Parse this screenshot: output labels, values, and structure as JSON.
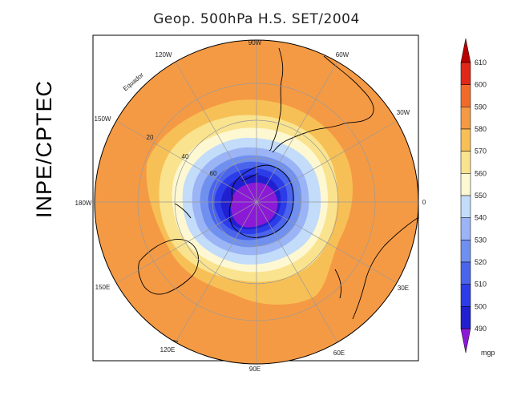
{
  "title": "Geop. 500hPa H.S. SET/2004",
  "credit": "INPE/CPTEC",
  "map": {
    "projection": "south-polar-stereographic",
    "longitude_labels": [
      {
        "text": "90W",
        "lon": -90
      },
      {
        "text": "60W",
        "lon": -60
      },
      {
        "text": "30W",
        "lon": -30
      },
      {
        "text": "0",
        "lon": 0
      },
      {
        "text": "30E",
        "lon": 30
      },
      {
        "text": "60E",
        "lon": 60
      },
      {
        "text": "90E",
        "lon": 90
      },
      {
        "text": "120E",
        "lon": 120
      },
      {
        "text": "150E",
        "lon": 150
      },
      {
        "text": "180W",
        "lon": 180
      },
      {
        "text": "150W",
        "lon": -150
      },
      {
        "text": "120W",
        "lon": -120
      }
    ],
    "latitude_labels": [
      {
        "text": "20",
        "lat": -20
      },
      {
        "text": "40",
        "lat": -40
      },
      {
        "text": "60",
        "lat": -60
      }
    ],
    "equator_label": "Equador"
  },
  "colorbar": {
    "unit": "mgp",
    "levels": [
      "490",
      "500",
      "510",
      "520",
      "530",
      "540",
      "550",
      "560",
      "570",
      "580",
      "590",
      "600",
      "610"
    ],
    "colors": [
      "#8b1ad6",
      "#2020d0",
      "#2c3ce8",
      "#4a64ec",
      "#7090f0",
      "#9ab4f6",
      "#c2dcfa",
      "#fdf8d2",
      "#fae38e",
      "#f7c056",
      "#f59a44",
      "#f26a2a",
      "#e02818",
      "#b80000"
    ]
  },
  "chart_data": {
    "type": "heatmap",
    "title": "Geop. 500hPa H.S. SET/2004",
    "variable": "500 hPa geopotential height",
    "unit": "mgp",
    "contour_levels": [
      490,
      500,
      510,
      520,
      530,
      540,
      550,
      560,
      570,
      580,
      590,
      600,
      610
    ],
    "approx_field": [
      {
        "region": "South Pole",
        "value_range": "<490"
      },
      {
        "region": "60S",
        "value_range": "530-550"
      },
      {
        "region": "40S",
        "value_range": "560-580"
      },
      {
        "region": "20S / Equator",
        "value_range": "580-590"
      }
    ]
  }
}
